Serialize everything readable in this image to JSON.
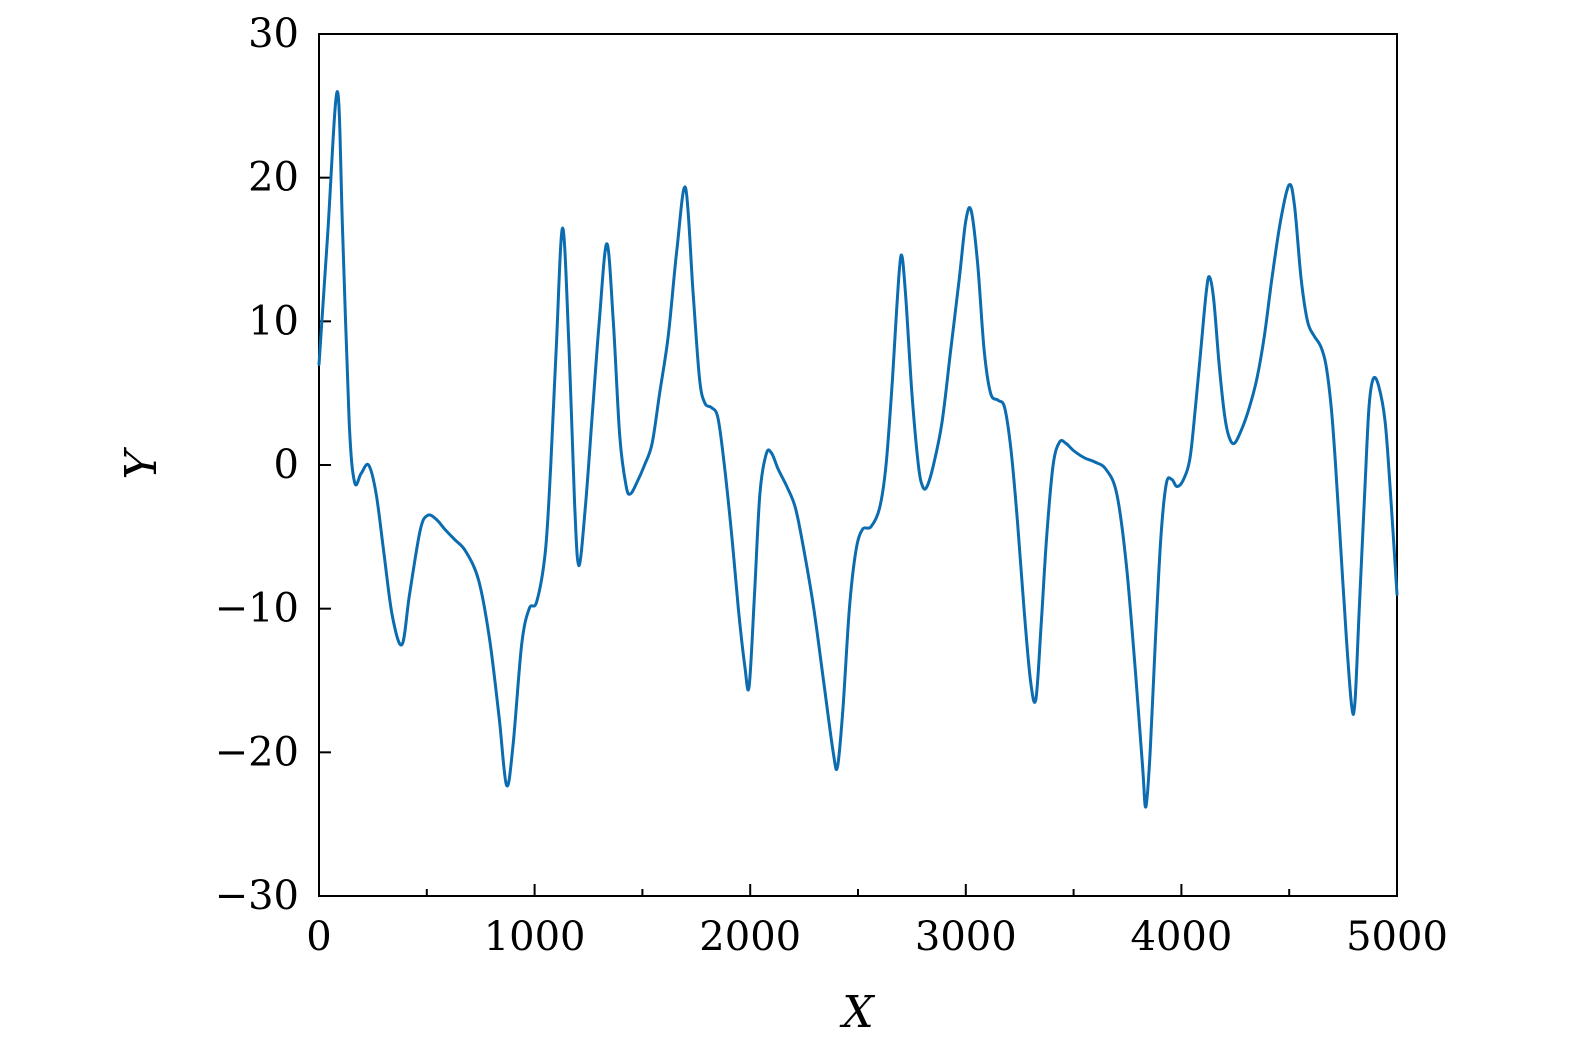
{
  "chart_data": {
    "type": "line",
    "title": "",
    "xlabel": "X",
    "ylabel": "Y",
    "xlim": [
      0,
      5000
    ],
    "ylim": [
      -30,
      30
    ],
    "xticks": [
      0,
      1000,
      2000,
      3000,
      4000,
      5000
    ],
    "yticks": [
      -30,
      -20,
      -10,
      0,
      10,
      20,
      30
    ],
    "xtick_labels": [
      "0",
      "1000",
      "2000",
      "3000",
      "4000",
      "5000"
    ],
    "ytick_labels": [
      "−30",
      "−20",
      "−10",
      "0",
      "10",
      "20",
      "30"
    ],
    "x_minor_ticks": [
      500,
      1500,
      2500,
      3500,
      4500
    ],
    "grid": false,
    "legend": "none",
    "series": [
      {
        "color": "#0c6cb0",
        "points": [
          [
            0,
            7
          ],
          [
            40,
            16
          ],
          [
            85,
            26
          ],
          [
            110,
            16
          ],
          [
            140,
            3
          ],
          [
            165,
            -1.2
          ],
          [
            195,
            -0.6
          ],
          [
            230,
            0
          ],
          [
            265,
            -2
          ],
          [
            300,
            -6
          ],
          [
            340,
            -10.5
          ],
          [
            385,
            -12.5
          ],
          [
            420,
            -9
          ],
          [
            470,
            -4.5
          ],
          [
            505,
            -3.5
          ],
          [
            545,
            -3.8
          ],
          [
            585,
            -4.5
          ],
          [
            630,
            -5.2
          ],
          [
            680,
            -6
          ],
          [
            740,
            -8
          ],
          [
            790,
            -12
          ],
          [
            835,
            -17.5
          ],
          [
            870,
            -22.3
          ],
          [
            900,
            -19.5
          ],
          [
            940,
            -12.5
          ],
          [
            975,
            -10
          ],
          [
            1010,
            -9.5
          ],
          [
            1050,
            -6
          ],
          [
            1075,
            0
          ],
          [
            1100,
            8
          ],
          [
            1130,
            16.5
          ],
          [
            1160,
            8
          ],
          [
            1185,
            -2.5
          ],
          [
            1205,
            -7
          ],
          [
            1235,
            -3
          ],
          [
            1270,
            4
          ],
          [
            1300,
            10
          ],
          [
            1335,
            15.4
          ],
          [
            1365,
            10
          ],
          [
            1395,
            2
          ],
          [
            1425,
            -1.5
          ],
          [
            1445,
            -2
          ],
          [
            1475,
            -1.2
          ],
          [
            1510,
            0
          ],
          [
            1545,
            1.5
          ],
          [
            1580,
            5
          ],
          [
            1620,
            9
          ],
          [
            1660,
            15
          ],
          [
            1700,
            19.3
          ],
          [
            1735,
            12
          ],
          [
            1765,
            6
          ],
          [
            1790,
            4.3
          ],
          [
            1820,
            4
          ],
          [
            1850,
            3.3
          ],
          [
            1880,
            0
          ],
          [
            1915,
            -5
          ],
          [
            1945,
            -10
          ],
          [
            1975,
            -14
          ],
          [
            1995,
            -15.4
          ],
          [
            2020,
            -9
          ],
          [
            2045,
            -2
          ],
          [
            2075,
            0.8
          ],
          [
            2100,
            0.8
          ],
          [
            2130,
            -0.3
          ],
          [
            2170,
            -1.5
          ],
          [
            2210,
            -3
          ],
          [
            2250,
            -6
          ],
          [
            2295,
            -10
          ],
          [
            2340,
            -15
          ],
          [
            2385,
            -20
          ],
          [
            2405,
            -21
          ],
          [
            2430,
            -17
          ],
          [
            2460,
            -10
          ],
          [
            2490,
            -6
          ],
          [
            2520,
            -4.5
          ],
          [
            2560,
            -4.3
          ],
          [
            2600,
            -3
          ],
          [
            2630,
            0
          ],
          [
            2660,
            6
          ],
          [
            2680,
            11
          ],
          [
            2700,
            14.6
          ],
          [
            2720,
            12
          ],
          [
            2750,
            5
          ],
          [
            2780,
            0
          ],
          [
            2800,
            -1.5
          ],
          [
            2820,
            -1.5
          ],
          [
            2850,
            0
          ],
          [
            2890,
            3
          ],
          [
            2930,
            8
          ],
          [
            2970,
            13
          ],
          [
            3000,
            17
          ],
          [
            3025,
            17.7
          ],
          [
            3055,
            14
          ],
          [
            3085,
            8
          ],
          [
            3115,
            5
          ],
          [
            3150,
            4.5
          ],
          [
            3180,
            4
          ],
          [
            3210,
            1
          ],
          [
            3240,
            -4
          ],
          [
            3270,
            -10
          ],
          [
            3300,
            -15
          ],
          [
            3325,
            -16.3
          ],
          [
            3350,
            -11
          ],
          [
            3375,
            -5
          ],
          [
            3405,
            0
          ],
          [
            3435,
            1.6
          ],
          [
            3465,
            1.5
          ],
          [
            3500,
            1
          ],
          [
            3550,
            0.5
          ],
          [
            3600,
            0.2
          ],
          [
            3650,
            -0.3
          ],
          [
            3700,
            -2
          ],
          [
            3745,
            -7
          ],
          [
            3790,
            -15
          ],
          [
            3820,
            -21
          ],
          [
            3835,
            -23.8
          ],
          [
            3855,
            -20
          ],
          [
            3880,
            -12
          ],
          [
            3905,
            -5
          ],
          [
            3930,
            -1.3
          ],
          [
            3955,
            -1
          ],
          [
            3980,
            -1.5
          ],
          [
            4010,
            -1
          ],
          [
            4040,
            0.5
          ],
          [
            4065,
            4
          ],
          [
            4090,
            8
          ],
          [
            4115,
            12
          ],
          [
            4130,
            13.1
          ],
          [
            4150,
            11.5
          ],
          [
            4175,
            7
          ],
          [
            4200,
            3.5
          ],
          [
            4220,
            2
          ],
          [
            4245,
            1.5
          ],
          [
            4280,
            2.5
          ],
          [
            4315,
            4
          ],
          [
            4350,
            6
          ],
          [
            4385,
            9
          ],
          [
            4420,
            13
          ],
          [
            4460,
            17
          ],
          [
            4500,
            19.5
          ],
          [
            4525,
            18
          ],
          [
            4555,
            13
          ],
          [
            4585,
            10
          ],
          [
            4615,
            9
          ],
          [
            4645,
            8.3
          ],
          [
            4670,
            7
          ],
          [
            4695,
            4
          ],
          [
            4715,
            0
          ],
          [
            4740,
            -6
          ],
          [
            4765,
            -12
          ],
          [
            4790,
            -16.8
          ],
          [
            4805,
            -16.5
          ],
          [
            4825,
            -10
          ],
          [
            4850,
            -2
          ],
          [
            4870,
            4
          ],
          [
            4890,
            6
          ],
          [
            4915,
            5.5
          ],
          [
            4945,
            3
          ],
          [
            4970,
            -2
          ],
          [
            5000,
            -9
          ]
        ]
      }
    ]
  }
}
